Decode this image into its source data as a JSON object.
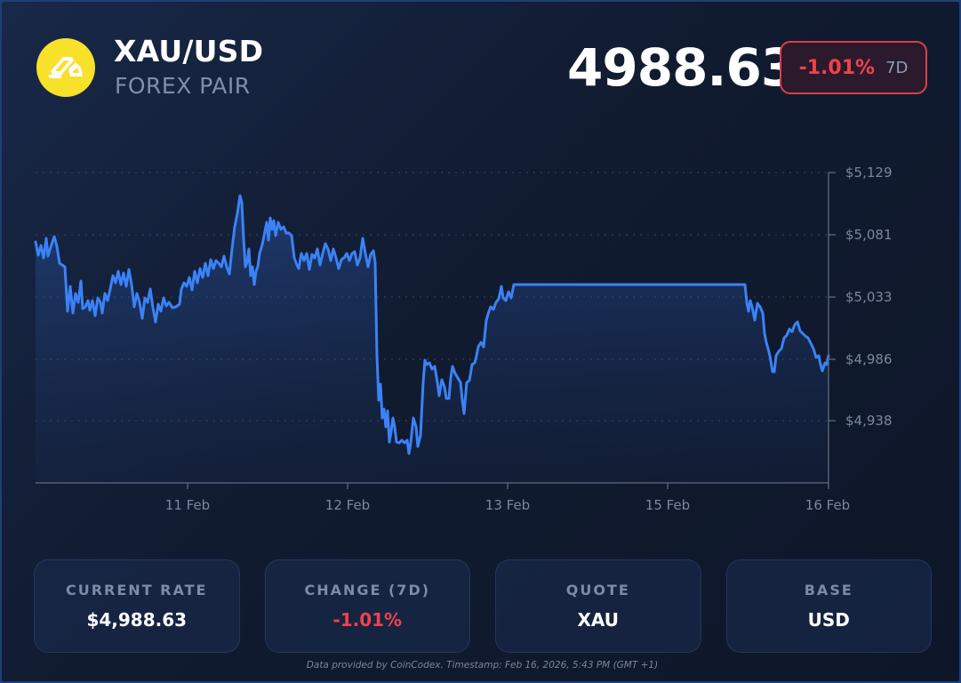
{
  "header": {
    "pair": "XAU/USD",
    "subtitle": "FOREX PAIR",
    "icon": "gold-bars-icon",
    "price": "4988.63",
    "change_pct": "-1.01%",
    "change_period": "7D"
  },
  "colors": {
    "accent_line": "#3b82f6",
    "negative": "#f0424c",
    "logo_bg": "#f7e12a",
    "frame_border": "#1d3f7a"
  },
  "chart_data": {
    "type": "area",
    "title": "",
    "xlabel": "",
    "ylabel": "",
    "x_ticks": [
      "11 Feb",
      "12 Feb",
      "13 Feb",
      "15 Feb",
      "16 Feb"
    ],
    "y_ticks": [
      "$5,129",
      "$5,081",
      "$5,033",
      "$4,986",
      "$4,938"
    ],
    "y_tick_values": [
      5129,
      5081,
      5033,
      4986,
      4938
    ],
    "ylim": [
      4890,
      5133
    ],
    "grid": "horizontal dotted",
    "legend": "none",
    "series": [
      {
        "name": "XAU/USD",
        "points": [
          [
            "10 Feb 02:00",
            5077
          ],
          [
            "10 Feb 03:00",
            5062
          ],
          [
            "10 Feb 04:00",
            5072
          ],
          [
            "10 Feb 05:00",
            5064
          ],
          [
            "10 Feb 06:00",
            5076
          ],
          [
            "10 Feb 07:00",
            5064
          ],
          [
            "10 Feb 08:00",
            5055
          ],
          [
            "10 Feb 09:00",
            5054
          ],
          [
            "10 Feb 10:00",
            5019
          ],
          [
            "10 Feb 11:00",
            5033
          ],
          [
            "10 Feb 12:00",
            5017
          ],
          [
            "10 Feb 13:00",
            5038
          ],
          [
            "10 Feb 14:00",
            5022
          ],
          [
            "10 Feb 15:00",
            5030
          ],
          [
            "10 Feb 16:00",
            5024
          ],
          [
            "10 Feb 17:00",
            5016
          ],
          [
            "10 Feb 18:00",
            5024
          ],
          [
            "10 Feb 19:00",
            5040
          ],
          [
            "10 Feb 20:00",
            5052
          ],
          [
            "10 Feb 21:00",
            5044
          ],
          [
            "10 Feb 22:00",
            5049
          ],
          [
            "10 Feb 23:00",
            5027
          ],
          [
            "11 Feb 00:00",
            5013
          ],
          [
            "11 Feb 01:00",
            5025
          ],
          [
            "11 Feb 02:00",
            5030
          ],
          [
            "11 Feb 03:00",
            5016
          ],
          [
            "11 Feb 04:00",
            5030
          ],
          [
            "11 Feb 05:00",
            5047
          ],
          [
            "11 Feb 06:00",
            5040
          ],
          [
            "11 Feb 07:00",
            5050
          ],
          [
            "11 Feb 08:00",
            5043
          ],
          [
            "11 Feb 09:00",
            5056
          ],
          [
            "11 Feb 10:00",
            5047
          ],
          [
            "11 Feb 11:00",
            5057
          ],
          [
            "11 Feb 12:00",
            5062
          ],
          [
            "11 Feb 13:00",
            5104
          ],
          [
            "11 Feb 14:00",
            5075
          ],
          [
            "11 Feb 15:00",
            5053
          ],
          [
            "11 Feb 16:00",
            5065
          ],
          [
            "11 Feb 17:00",
            5043
          ],
          [
            "11 Feb 18:00",
            5075
          ],
          [
            "11 Feb 19:00",
            5091
          ],
          [
            "11 Feb 20:00",
            5082
          ],
          [
            "11 Feb 21:00",
            5090
          ],
          [
            "11 Feb 22:00",
            5082
          ],
          [
            "11 Feb 23:00",
            5077
          ],
          [
            "12 Feb 00:00",
            5056
          ],
          [
            "12 Feb 01:00",
            5063
          ],
          [
            "12 Feb 02:00",
            5060
          ],
          [
            "12 Feb 03:00",
            5070
          ],
          [
            "12 Feb 04:00",
            5060
          ],
          [
            "12 Feb 05:00",
            5065
          ],
          [
            "12 Feb 06:00",
            5071
          ],
          [
            "12 Feb 07:00",
            5062
          ],
          [
            "12 Feb 08:00",
            5066
          ],
          [
            "12 Feb 09:00",
            5059
          ],
          [
            "12 Feb 10:00",
            5078
          ],
          [
            "12 Feb 11:00",
            5064
          ],
          [
            "12 Feb 12:00",
            5000
          ],
          [
            "12 Feb 13:00",
            4960
          ],
          [
            "12 Feb 14:00",
            4938
          ],
          [
            "12 Feb 15:00",
            4925
          ],
          [
            "12 Feb 16:00",
            4918
          ],
          [
            "12 Feb 17:00",
            4906
          ],
          [
            "12 Feb 18:00",
            4924
          ],
          [
            "12 Feb 19:00",
            4968
          ],
          [
            "12 Feb 20:00",
            4985
          ],
          [
            "12 Feb 21:00",
            4970
          ],
          [
            "12 Feb 22:00",
            4965
          ],
          [
            "12 Feb 23:00",
            4980
          ],
          [
            "13 Feb 00:00",
            4963
          ],
          [
            "13 Feb 01:00",
            4950
          ],
          [
            "13 Feb 02:00",
            4970
          ],
          [
            "13 Feb 03:00",
            4998
          ],
          [
            "13 Feb 04:00",
            5014
          ],
          [
            "13 Feb 05:00",
            5030
          ],
          [
            "13 Feb 06:00",
            5038
          ],
          [
            "13 Feb 07:00",
            5034
          ],
          [
            "13 Feb 08:00",
            5040
          ],
          [
            "15 Feb 23:00",
            5040
          ],
          [
            "16 Feb 00:00",
            5026
          ],
          [
            "16 Feb 02:00",
            5010
          ],
          [
            "16 Feb 03:00",
            4977
          ],
          [
            "16 Feb 05:00",
            4990
          ],
          [
            "16 Feb 07:00",
            5004
          ],
          [
            "16 Feb 09:00",
            4996
          ],
          [
            "16 Feb 11:00",
            4980
          ],
          [
            "16 Feb 12:00",
            4988.63
          ]
        ]
      }
    ]
  },
  "chart_pixels": {
    "line": "40,272 43,287 46,276 49,290 52,268 54,288 57,278 61,266 64,277 67,296 70,298 73,300 76,350 79,322 82,352 85,330 88,340 91,316 93,347 96,345 99,338 101,349 104,338 107,355 110,335 113,340 115,352 118,330 121,338 124,325 127,310 130,318 133,305 136,320 139,307 142,322 145,303 148,320 151,345 154,330 157,340 160,358 163,335 166,340 169,325 172,346 175,362 178,342 181,350 184,335 187,344 190,340 194,346 198,345 202,342 204,325 207,318 210,322 213,312 216,326 219,305 222,318 225,302 228,312 231,296 234,310 237,292 240,302 243,293 246,296 249,300 252,288 255,300 258,308 261,280 264,255 267,240 270,220 272,228 274,268 276,300 278,295 280,280 282,310 284,300 286,320 288,305 290,300 292,285 295,275 298,260 300,250 302,270 304,245 306,258 308,248 310,265 313,250 316,258 319,255 322,262 325,262 328,265 331,290 334,298 336,302 339,285 342,293 345,285 348,303 351,286 354,290 357,280 360,298 363,285 366,274 369,280 372,293 375,280 378,290 381,302 384,292 387,290 390,285 393,293 396,285 399,283 402,298 405,290 408,268 411,285 414,300 417,286 420,282 422,295 424,400 426,450 428,432 430,470 432,460 434,480 436,462 438,497 440,485 442,470 444,480 446,497 449,498 452,495 455,498 458,495 460,510 462,498 465,470 468,480 470,502 473,490 476,430 478,405 480,410 483,408 486,415 489,412 492,430 494,445 497,427 500,435 502,448 505,448 507,425 509,412 512,420 515,425 518,430 520,450 522,465 525,430 528,428 531,410 534,408 536,400 538,390 541,385 544,390 547,360 550,350 552,345 555,348 558,340 561,336 564,322 566,335 569,338 572,328 575,335 578,320 600,320 700,320 838,320 840,340 842,350 844,338 846,345 849,360 852,341 855,345 858,352 860,375 862,385 864,392 866,400 869,418 871,418 873,400 876,395 879,392 882,380 885,377 888,370 891,373 894,365 897,362 900,372 903,375 906,378 909,380 912,386 915,392 918,402 921,400 923,410 925,417 928,408 930,410 932,400"
  },
  "stats": {
    "cards": [
      {
        "label": "CURRENT RATE",
        "value": "$4,988.63",
        "tone": "neutral"
      },
      {
        "label": "CHANGE (7D)",
        "value": "-1.01%",
        "tone": "negative"
      },
      {
        "label": "QUOTE",
        "value": "XAU",
        "tone": "neutral"
      },
      {
        "label": "BASE",
        "value": "USD",
        "tone": "neutral"
      }
    ]
  },
  "footer": {
    "text": "Data provided by CoinCodex. Timestamp: Feb 16, 2026, 5:43 PM (GMT +1)"
  }
}
